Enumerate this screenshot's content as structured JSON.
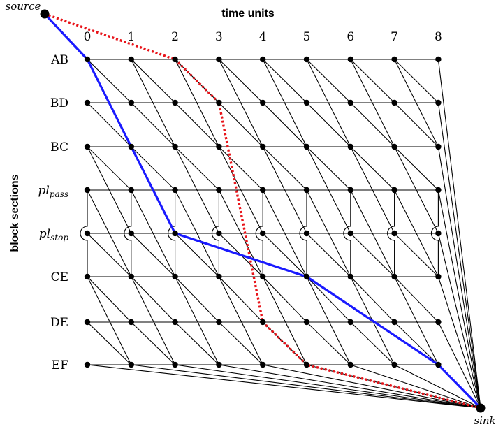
{
  "axis": {
    "x_title": "time units",
    "y_title": "block sections",
    "time_labels": [
      "0",
      "1",
      "2",
      "3",
      "4",
      "5",
      "6",
      "7",
      "8"
    ]
  },
  "nodes": {
    "source_label": "source",
    "sink_label": "sink"
  },
  "block_sections": [
    {
      "main": "AB",
      "sub": ""
    },
    {
      "main": "BD",
      "sub": ""
    },
    {
      "main": "BC",
      "sub": ""
    },
    {
      "main": "pl",
      "sub": "pass"
    },
    {
      "main": "pl",
      "sub": "stop"
    },
    {
      "main": "CE",
      "sub": ""
    },
    {
      "main": "DE",
      "sub": ""
    },
    {
      "main": "EF",
      "sub": ""
    }
  ],
  "paths": {
    "blue": {
      "color": "#1a1aff",
      "style": "solid",
      "route": [
        [
          "source"
        ],
        [
          0,
          0
        ],
        [
          1,
          2
        ],
        [
          2,
          4
        ],
        [
          5,
          5
        ],
        [
          8,
          7
        ],
        [
          "sink"
        ]
      ]
    },
    "red": {
      "color": "#e8141a",
      "style": "dotted",
      "route": [
        [
          "source"
        ],
        [
          2,
          0
        ],
        [
          3,
          1
        ],
        [
          4,
          6
        ],
        [
          5,
          7
        ],
        [
          "sink"
        ]
      ]
    }
  },
  "colors": {
    "edge": "#000000",
    "node": "#000000"
  }
}
